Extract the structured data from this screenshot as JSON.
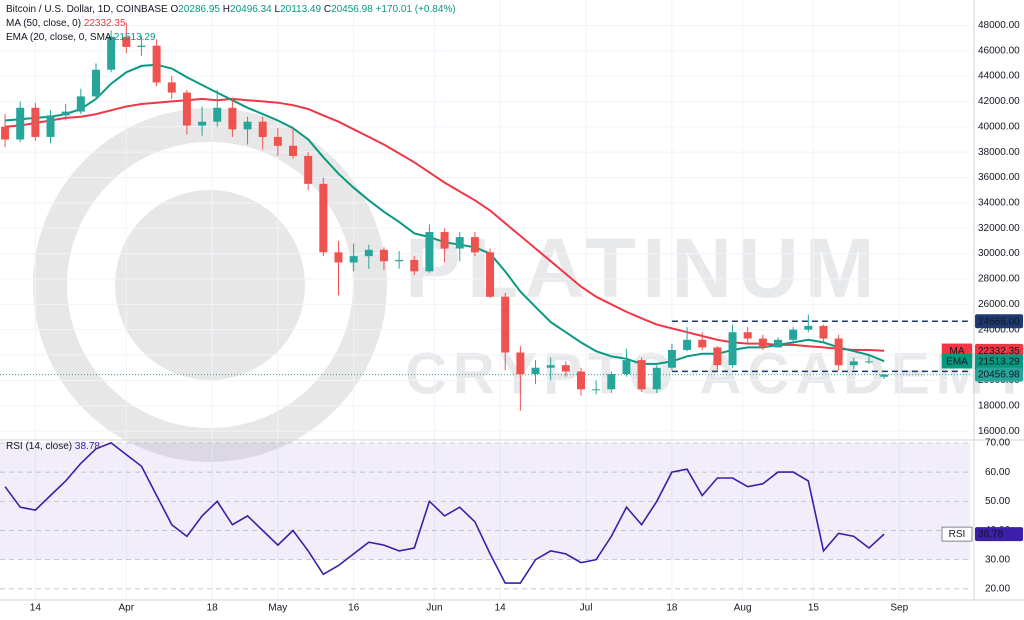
{
  "chart_data": {
    "type": "candlestick",
    "title": "Bitcoin / U.S. Dollar, 1D, COINBASE",
    "ohlc_labels": [
      "O",
      "H",
      "L",
      "C"
    ],
    "change_label": "+170.01 (+0.84%)",
    "up_color": "#26a69a",
    "down_color": "#ef5350",
    "x": [
      "Mar 8",
      "Mar 11",
      "Mar 14",
      "Mar 17",
      "Mar 20",
      "Mar 23",
      "Mar 26",
      "Mar 29",
      "Apr 1",
      "Apr 4",
      "Apr 7",
      "Apr 10",
      "Apr 13",
      "Apr 16",
      "Apr 19",
      "Apr 22",
      "Apr 25",
      "Apr 28",
      "May 1",
      "May 4",
      "May 7",
      "May 10",
      "May 13",
      "May 16",
      "May 19",
      "May 22",
      "May 25",
      "May 28",
      "May 31",
      "Jun 3",
      "Jun 6",
      "Jun 9",
      "Jun 12",
      "Jun 15",
      "Jun 18",
      "Jun 21",
      "Jun 24",
      "Jun 27",
      "Jun 30",
      "Jul 3",
      "Jul 6",
      "Jul 9",
      "Jul 12",
      "Jul 15",
      "Jul 18",
      "Jul 21",
      "Jul 24",
      "Jul 27",
      "Jul 30",
      "Aug 2",
      "Aug 5",
      "Aug 8",
      "Aug 11",
      "Aug 14",
      "Aug 17",
      "Aug 20",
      "Aug 23",
      "Aug 26",
      "Aug 29"
    ],
    "open": [
      40000,
      39000,
      41500,
      39200,
      40900,
      41200,
      42400,
      44500,
      47100,
      46300,
      46400,
      43500,
      42700,
      40100,
      40400,
      41500,
      39800,
      40400,
      39200,
      38500,
      37700,
      35500,
      30100,
      29300,
      29800,
      30300,
      29400,
      29500,
      28600,
      31700,
      30400,
      31300,
      30100,
      26600,
      22200,
      20500,
      21000,
      21200,
      20700,
      19300,
      19300,
      20500,
      21600,
      19300,
      21000,
      22400,
      23200,
      22600,
      21200,
      23800,
      23300,
      22600,
      23200,
      24000,
      24300,
      23300,
      21200,
      21500,
      20286.95
    ],
    "high": [
      41000,
      42000,
      41900,
      41300,
      41800,
      43000,
      45000,
      47600,
      48200,
      47200,
      46900,
      44000,
      42900,
      41600,
      42900,
      42300,
      40800,
      40800,
      39900,
      40000,
      38000,
      36000,
      31000,
      30800,
      30700,
      30500,
      30200,
      29800,
      32300,
      32000,
      31700,
      31700,
      30400,
      26900,
      22700,
      21600,
      21800,
      21500,
      21000,
      20000,
      20700,
      22500,
      21800,
      21200,
      22900,
      24200,
      23800,
      22700,
      24400,
      24200,
      23600,
      23400,
      24200,
      25200,
      24400,
      23600,
      21800,
      21900,
      20496.34
    ],
    "low": [
      38400,
      38800,
      38900,
      38700,
      40500,
      41000,
      42200,
      44300,
      45800,
      45600,
      43200,
      42200,
      39400,
      39300,
      40000,
      39200,
      38600,
      38200,
      37700,
      37500,
      35000,
      29800,
      26700,
      28600,
      28800,
      28700,
      28800,
      28300,
      28500,
      29300,
      29400,
      29800,
      26500,
      20800,
      17600,
      19700,
      20000,
      20300,
      18800,
      18900,
      19000,
      20300,
      19100,
      19000,
      20800,
      22300,
      22400,
      20800,
      21000,
      22900,
      22400,
      22600,
      22900,
      23800,
      23100,
      20800,
      20900,
      21300,
      20113.49
    ],
    "close": [
      39000,
      41500,
      39200,
      40900,
      41200,
      42400,
      44500,
      47100,
      46300,
      46400,
      43500,
      42700,
      40100,
      40400,
      41500,
      39800,
      40400,
      39200,
      38500,
      37700,
      35500,
      30100,
      29300,
      29800,
      30300,
      29400,
      29500,
      28600,
      31700,
      30400,
      31300,
      30100,
      26600,
      22200,
      20500,
      21000,
      21200,
      20700,
      19300,
      19300,
      20500,
      21600,
      19300,
      21000,
      22400,
      23200,
      22600,
      21200,
      23800,
      23300,
      22600,
      23200,
      24000,
      24300,
      23300,
      21200,
      21500,
      21500,
      20456.98
    ],
    "overlays": [
      {
        "name": "MA (50, close, 0)",
        "tag": "MA",
        "color": "#f23645",
        "values": [
          40000,
          40100,
          40300,
          40500,
          40700,
          40800,
          41000,
          41300,
          41600,
          41800,
          41900,
          42000,
          42100,
          42200,
          42100,
          42200,
          42100,
          42000,
          41900,
          41700,
          41400,
          40900,
          40400,
          39800,
          39200,
          38600,
          37900,
          37200,
          36400,
          35600,
          34900,
          34200,
          33400,
          32400,
          31400,
          30400,
          29400,
          28400,
          27400,
          26600,
          26000,
          25400,
          24900,
          24400,
          24100,
          23800,
          23500,
          23200,
          23000,
          22900,
          22900,
          22800,
          22800,
          22700,
          22600,
          22500,
          22400,
          22400,
          22332.35
        ]
      },
      {
        "name": "EMA (20, close, 0, SMA",
        "tag": "EMA",
        "color": "#089981",
        "values": [
          40500,
          40600,
          40700,
          40800,
          41000,
          41400,
          42200,
          43400,
          44300,
          44800,
          44900,
          44600,
          43900,
          43300,
          42700,
          42100,
          41500,
          41000,
          40500,
          39900,
          39000,
          37600,
          36300,
          35200,
          34200,
          33300,
          32500,
          31600,
          31300,
          30900,
          30700,
          30500,
          30000,
          28600,
          27000,
          25800,
          24600,
          23800,
          23000,
          22300,
          21900,
          21700,
          21300,
          21300,
          21500,
          21900,
          22100,
          22100,
          22400,
          22600,
          22600,
          22800,
          23000,
          23200,
          23000,
          22600,
          22300,
          22000,
          21513.29
        ]
      }
    ],
    "levels": {
      "values": [
        24666,
        20715
      ],
      "value_labels": [
        "24666.00",
        "20715.00"
      ],
      "from": "Jul 18",
      "color": "#1e3a6e"
    },
    "xlim": [
      "Mar 7",
      "Sep 15"
    ],
    "xticks": [
      {
        "value": "Mar 14",
        "label": "14"
      },
      {
        "value": "Apr 1",
        "label": "Apr"
      },
      {
        "value": "Apr 18",
        "label": "18"
      },
      {
        "value": "May 1",
        "label": "May"
      },
      {
        "value": "May 16",
        "label": "16"
      },
      {
        "value": "Jun 1",
        "label": "Jun"
      },
      {
        "value": "Jun 14",
        "label": "14"
      },
      {
        "value": "Jul 1",
        "label": "Jul"
      },
      {
        "value": "Jul 18",
        "label": "18"
      },
      {
        "value": "Aug 1",
        "label": "Aug"
      },
      {
        "value": "Aug 15",
        "label": "15"
      },
      {
        "value": "Sep 1",
        "label": "Sep"
      }
    ],
    "ylim": [
      15300,
      50000
    ],
    "yticks": [
      {
        "value": 16000,
        "label": "16000.00"
      },
      {
        "value": 18000,
        "label": "18000.00"
      },
      {
        "value": 20000,
        "label": "20000.00"
      },
      {
        "value": 22000,
        "label": "22000.00"
      },
      {
        "value": 24000,
        "label": "24000.00"
      },
      {
        "value": 26000,
        "label": "26000.00"
      },
      {
        "value": 28000,
        "label": "28000.00"
      },
      {
        "value": 30000,
        "label": "30000.00"
      },
      {
        "value": 32000,
        "label": "32000.00"
      },
      {
        "value": 34000,
        "label": "34000.00"
      },
      {
        "value": 36000,
        "label": "36000.00"
      },
      {
        "value": 38000,
        "label": "38000.00"
      },
      {
        "value": 40000,
        "label": "40000.00"
      },
      {
        "value": 42000,
        "label": "42000.00"
      },
      {
        "value": 44000,
        "label": "44000.00"
      },
      {
        "value": 46000,
        "label": "46000.00"
      },
      {
        "value": 48000,
        "label": "48000.00"
      }
    ],
    "grid": true,
    "watermark": [
      "PLATINUM",
      "CRYPTO ACADEMY"
    ],
    "rsi": {
      "name": "RSI (14, close)",
      "tag": "RSI",
      "color": "#3b1fa8",
      "values": [
        55,
        48,
        47,
        52,
        57,
        63,
        68,
        70,
        66,
        62,
        52,
        42,
        38,
        45,
        50,
        42,
        45,
        40,
        35,
        40,
        33,
        25,
        28,
        32,
        36,
        35,
        33,
        34,
        50,
        45,
        48,
        43,
        32,
        22,
        22,
        30,
        33,
        32,
        29,
        30,
        38,
        48,
        42,
        50,
        60,
        61,
        52,
        58,
        58,
        55,
        56,
        60,
        60,
        57,
        33,
        39,
        38,
        34,
        38.78
      ],
      "ylim": [
        16.2,
        71
      ],
      "band": [
        30,
        70
      ],
      "yticks": [
        {
          "value": 20,
          "label": "20.00"
        },
        {
          "value": 30,
          "label": "30.00"
        },
        {
          "value": 40,
          "label": "40.00"
        },
        {
          "value": 50,
          "label": "50.00"
        },
        {
          "value": 60,
          "label": "60.00"
        },
        {
          "value": 70,
          "label": "70.00"
        }
      ]
    }
  }
}
